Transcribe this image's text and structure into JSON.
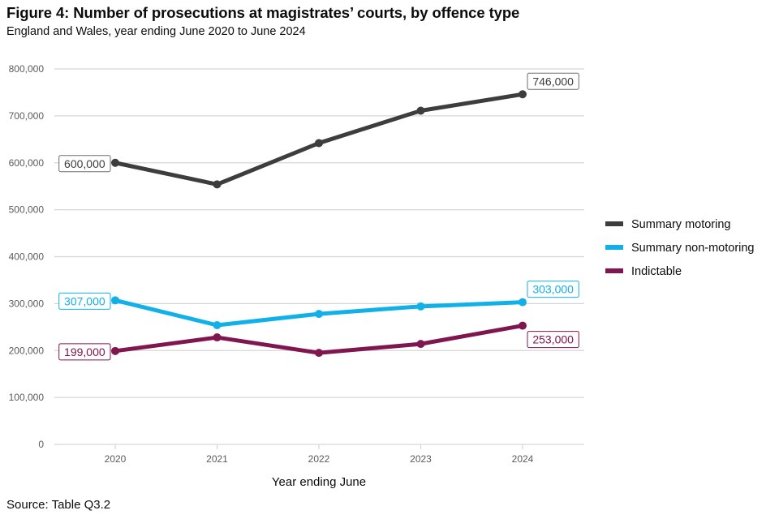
{
  "title": "Figure 4: Number of prosecutions at magistrates’ courts, by offence type",
  "subtitle": "England and Wales, year ending June 2020 to June 2024",
  "source": "Source: Table Q3.2",
  "chart_data": {
    "type": "line",
    "title": "Figure 4: Number of prosecutions at magistrates’ courts, by offence type",
    "subtitle": "England and Wales, year ending June 2020 to June 2024",
    "xlabel": "Year ending June",
    "ylabel": "",
    "x": [
      "2020",
      "2021",
      "2022",
      "2023",
      "2024"
    ],
    "ylim": [
      0,
      800000
    ],
    "yticks": [
      0,
      100000,
      200000,
      300000,
      400000,
      500000,
      600000,
      700000,
      800000
    ],
    "ytick_labels": [
      "0",
      "100,000",
      "200,000",
      "300,000",
      "400,000",
      "500,000",
      "600,000",
      "700,000",
      "800,000"
    ],
    "grid": "horizontal",
    "legend_position": "right",
    "series": [
      {
        "name": "Summary motoring",
        "color": "#3d3d3d",
        "values": [
          600000,
          554000,
          642000,
          711000,
          746000
        ],
        "labels": {
          "first": "600,000",
          "last": "746,000"
        }
      },
      {
        "name": "Summary non-motoring",
        "color": "#12b0e8",
        "values": [
          307000,
          254000,
          278000,
          294000,
          303000
        ],
        "labels": {
          "first": "307,000",
          "last": "303,000"
        }
      },
      {
        "name": "Indictable",
        "color": "#801650",
        "values": [
          199000,
          228000,
          195000,
          214000,
          253000
        ],
        "labels": {
          "first": "199,000",
          "last": "253,000"
        }
      }
    ]
  }
}
